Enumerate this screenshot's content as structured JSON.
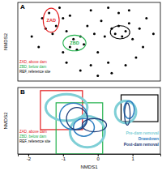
{
  "chart_data": [
    {
      "type": "scatter",
      "title": "A",
      "y_label": "NMDS2",
      "xlim": [
        -2.3,
        1.8
      ],
      "ylim": [
        -1.5,
        1.5
      ],
      "tick_labels": false,
      "color": "#000000",
      "x": [
        -1.6,
        -1.4,
        -1.2,
        -1.3,
        -1.5,
        -1.1,
        -1.0,
        -0.9,
        -0.8,
        -0.7,
        -0.6,
        -0.8,
        -0.5,
        -0.4,
        -0.3,
        -0.2,
        -0.1,
        0.0,
        0.1,
        0.2,
        0.3,
        0.4,
        0.5,
        0.6,
        0.7,
        0.8,
        0.9,
        1.0,
        0.6,
        0.3,
        1.2,
        1.4,
        1.3,
        1.1,
        0.8,
        0.4,
        -0.2,
        -0.5,
        -1.0,
        -1.9,
        1.6,
        -0.9,
        0.0,
        0.9,
        -1.7
      ],
      "values": [
        0.9,
        1.1,
        0.6,
        0.3,
        0.5,
        1.3,
        0.9,
        0.4,
        1.0,
        0.1,
        -0.3,
        -0.2,
        0.2,
        -0.1,
        0.6,
        1.2,
        0.3,
        -0.4,
        0.8,
        0.2,
        -0.8,
        0.5,
        0.3,
        0.6,
        0.2,
        0.4,
        0.7,
        0.1,
        1.1,
        1.3,
        0.5,
        0.9,
        -0.2,
        -0.6,
        -0.9,
        -1.2,
        -0.9,
        -1.1,
        -0.4,
        0.2,
        0.3,
        -0.8,
        -1.3,
        1.2,
        -0.2
      ],
      "groups": [
        {
          "name": "ZAD, above dam",
          "color": "#e31a1c",
          "label": "ZAD",
          "cx": -1.34,
          "cy": 0.82,
          "rx": 0.23,
          "ry": 0.46
        },
        {
          "name": "ZBD, below dam",
          "color": "#22b14c",
          "label": "ZBD",
          "cx": -0.67,
          "cy": -0.05,
          "rx": 0.33,
          "ry": 0.3
        },
        {
          "name": "REF, reference site",
          "color": "#000000",
          "cx": 0.64,
          "cy": 0.36,
          "rx": 0.28,
          "ry": 0.25
        }
      ]
    },
    {
      "type": "ellipse",
      "title": "B",
      "x_label": "NMDS1",
      "y_label": "NMDS2",
      "xlim": [
        -2.3,
        1.8
      ],
      "ylim": [
        -1.5,
        1.5
      ],
      "xticks": [
        -2,
        -1,
        0,
        1
      ],
      "tick_labels": "x",
      "boxes": [
        {
          "name": "ZAD, above dam",
          "color": "#e31a1c",
          "x": [
            -1.65,
            -0.44
          ],
          "y": [
            -0.4,
            1.36
          ]
        },
        {
          "name": "ZBD, below dam",
          "color": "#22b14c",
          "x": [
            -1.2,
            0.14
          ],
          "y": [
            -1.5,
            0.81
          ]
        },
        {
          "name": "REF, reference site",
          "color": "#000000",
          "x": [
            0.67,
            1.73
          ],
          "y": [
            -0.04,
            1.17
          ]
        }
      ],
      "series": [
        {
          "name": "Pre-dam removal",
          "color": "#7fcfd6",
          "ellipses": [
            {
              "cx": -0.9,
              "cy": 0.6,
              "rx": 0.6,
              "ry": 0.6
            },
            {
              "cx": -0.3,
              "cy": -0.5,
              "rx": 0.5,
              "ry": 0.7
            },
            {
              "cx": 0.8,
              "cy": 0.4,
              "rx": 0.3,
              "ry": 0.5
            }
          ]
        },
        {
          "name": "Drawdown",
          "color": "#2f7fc1",
          "ellipses": [
            {
              "cx": -0.7,
              "cy": 0.2,
              "rx": 0.4,
              "ry": 0.6
            },
            {
              "cx": -0.4,
              "cy": -0.3,
              "rx": 0.3,
              "ry": 0.4
            },
            {
              "cx": 0.9,
              "cy": 0.5,
              "rx": 0.15,
              "ry": 0.4
            }
          ]
        },
        {
          "name": "Post-dam removal",
          "color": "#1f3e7a",
          "ellipses": [
            {
              "cx": -0.6,
              "cy": 0.1,
              "rx": 0.3,
              "ry": 0.5
            },
            {
              "cx": -0.1,
              "cy": -0.2,
              "rx": 0.35,
              "ry": 0.3
            },
            {
              "cx": 0.85,
              "cy": 0.3,
              "rx": 0.08,
              "ry": 0.5
            }
          ]
        }
      ]
    }
  ]
}
